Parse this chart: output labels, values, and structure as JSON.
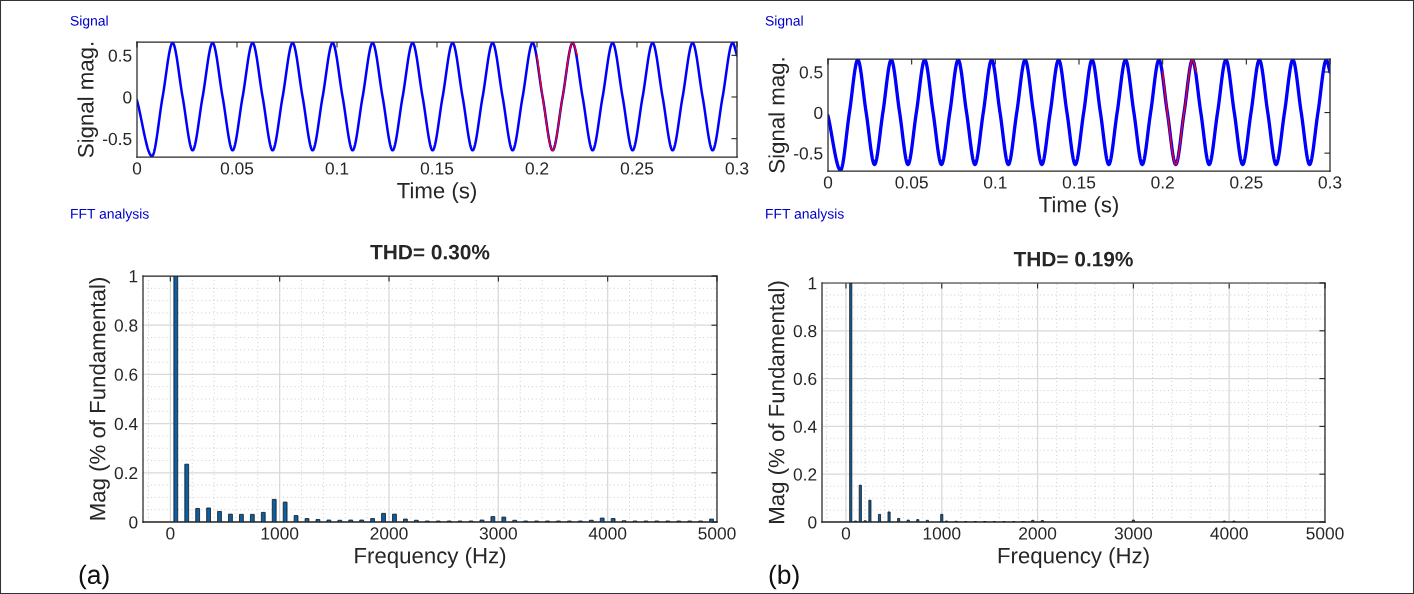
{
  "chart_data": [
    {
      "type": "line",
      "title": "Signal",
      "xlabel": "Time (s)",
      "ylabel": "Signal mag.",
      "xlim": [
        0,
        0.3
      ],
      "ylim": [
        -0.72,
        0.66
      ],
      "xticks": [
        0,
        0.05,
        0.1,
        0.15,
        0.2,
        0.25,
        0.3
      ],
      "yticks": [
        -0.5,
        0,
        0.5
      ],
      "series": [
        {
          "color": "#0000ff",
          "x": [
            0,
            0.0075,
            0.0128,
            0.0178,
            0.0228,
            0.0278,
            0.0328,
            0.0378,
            0.0428,
            0.0478,
            0.0528,
            0.0578,
            0.0628,
            0.0678,
            0.0728,
            0.0778,
            0.0828,
            0.0878,
            0.0928,
            0.0978,
            0.1028,
            0.1078,
            0.1128,
            0.1178,
            0.1228,
            0.1278,
            0.1328,
            0.1378,
            0.1428,
            0.1478,
            0.1528,
            0.1578,
            0.1628,
            0.1678,
            0.1728,
            0.1778,
            0.1828,
            0.1878,
            0.1928,
            0.1978,
            0.2028,
            0.2078,
            0.2128,
            0.2178,
            0.2228,
            0.2278,
            0.2328,
            0.2378,
            0.2428,
            0.2478,
            0.2528,
            0.2578,
            0.2628,
            0.2678,
            0.2728,
            0.2778,
            0.2828,
            0.2878,
            0.2928,
            0.2978,
            0.3
          ],
          "values": [
            -0.04,
            -0.71,
            0,
            0.65,
            0,
            -0.64,
            0,
            0.65,
            0,
            -0.64,
            0,
            0.65,
            0,
            -0.64,
            0,
            0.65,
            0,
            -0.64,
            0,
            0.65,
            0,
            -0.64,
            0,
            0.65,
            0,
            -0.64,
            0,
            0.65,
            0,
            -0.64,
            0,
            0.65,
            0,
            -0.64,
            0,
            0.65,
            0,
            -0.64,
            0,
            0.65,
            0,
            -0.64,
            0,
            0.65,
            0,
            -0.64,
            0,
            0.65,
            0,
            -0.64,
            0,
            0.65,
            0,
            -0.64,
            0,
            0.65,
            0,
            -0.64,
            0,
            0.65,
            0.5
          ]
        },
        {
          "color": "#ff0000",
          "x": [
            0.2,
            0.2028,
            0.2078,
            0.2128,
            0.2178,
            0.2202
          ],
          "values": [
            0.5,
            0,
            -0.64,
            0,
            0.65,
            0.5
          ]
        }
      ]
    },
    {
      "type": "bar",
      "subtitle": "FFT analysis",
      "title": "THD= 0.30%",
      "xlabel": "Frequency (Hz)",
      "ylabel": "Mag (% of Fundamental)",
      "annotations": [
        "(a)"
      ],
      "xlim": [
        -250,
        5000
      ],
      "ylim": [
        0,
        1
      ],
      "xticks": [
        0,
        1000,
        2000,
        3000,
        4000,
        5000
      ],
      "yticks": [
        0,
        0.2,
        0.4,
        0.6,
        0.8,
        1
      ],
      "grid": true,
      "color": "#0b5fa5",
      "x": [
        50,
        150,
        250,
        350,
        450,
        550,
        650,
        750,
        850,
        950,
        1050,
        1150,
        1250,
        1350,
        1450,
        1550,
        1650,
        1750,
        1850,
        1950,
        2050,
        2150,
        2250,
        2350,
        2450,
        2550,
        2650,
        2750,
        2850,
        2950,
        3050,
        3150,
        3250,
        3350,
        3450,
        3550,
        3650,
        3750,
        3850,
        3950,
        4050,
        4150,
        4250,
        4350,
        4450,
        4550,
        4650,
        4750,
        4850,
        4950
      ],
      "values": [
        1,
        0.235,
        0.055,
        0.057,
        0.043,
        0.032,
        0.031,
        0.031,
        0.039,
        0.092,
        0.081,
        0.026,
        0.014,
        0.01,
        0.008,
        0.007,
        0.008,
        0.008,
        0.014,
        0.035,
        0.032,
        0.012,
        0.007,
        0.004,
        0.004,
        0.004,
        0.004,
        0.004,
        0.008,
        0.022,
        0.02,
        0.007,
        0.004,
        0.004,
        0.004,
        0.004,
        0.004,
        0.004,
        0.007,
        0.016,
        0.014,
        0.005,
        0.004,
        0.004,
        0.004,
        0.004,
        0.004,
        0.004,
        0.004,
        0.012
      ]
    },
    {
      "type": "line",
      "title": "Signal",
      "xlabel": "Time (s)",
      "ylabel": "Signal mag.",
      "xlim": [
        0,
        0.3
      ],
      "ylim": [
        -0.72,
        0.66
      ],
      "xticks": [
        0,
        0.05,
        0.1,
        0.15,
        0.2,
        0.25,
        0.3
      ],
      "yticks": [
        -0.5,
        0,
        0.5
      ],
      "series": [
        {
          "color": "#0000ff",
          "x": [
            0,
            0.0075,
            0.0128,
            0.0178,
            0.0228,
            0.0278,
            0.0328,
            0.0378,
            0.0428,
            0.0478,
            0.0528,
            0.0578,
            0.0628,
            0.0678,
            0.0728,
            0.0778,
            0.0828,
            0.0878,
            0.0928,
            0.0978,
            0.1028,
            0.1078,
            0.1128,
            0.1178,
            0.1228,
            0.1278,
            0.1328,
            0.1378,
            0.1428,
            0.1478,
            0.1528,
            0.1578,
            0.1628,
            0.1678,
            0.1728,
            0.1778,
            0.1828,
            0.1878,
            0.1928,
            0.1978,
            0.2028,
            0.2078,
            0.2128,
            0.2178,
            0.2228,
            0.2278,
            0.2328,
            0.2378,
            0.2428,
            0.2478,
            0.2528,
            0.2578,
            0.2628,
            0.2678,
            0.2728,
            0.2778,
            0.2828,
            0.2878,
            0.2928,
            0.2978,
            0.3
          ],
          "values": [
            -0.04,
            -0.71,
            0,
            0.65,
            0,
            -0.64,
            0,
            0.65,
            0,
            -0.64,
            0,
            0.65,
            0,
            -0.64,
            0,
            0.65,
            0,
            -0.64,
            0,
            0.65,
            0,
            -0.64,
            0,
            0.65,
            0,
            -0.64,
            0,
            0.65,
            0,
            -0.64,
            0,
            0.65,
            0,
            -0.64,
            0,
            0.65,
            0,
            -0.64,
            0,
            0.65,
            0,
            -0.64,
            0,
            0.65,
            0,
            -0.64,
            0,
            0.65,
            0,
            -0.64,
            0,
            0.65,
            0,
            -0.64,
            0,
            0.65,
            0,
            -0.64,
            0,
            0.65,
            0.5
          ]
        },
        {
          "color": "#ff0000",
          "x": [
            0.2,
            0.2028,
            0.2078,
            0.2128,
            0.2178,
            0.2202
          ],
          "values": [
            0.5,
            0,
            -0.64,
            0,
            0.65,
            0.5
          ]
        }
      ]
    },
    {
      "type": "bar",
      "subtitle": "FFT analysis",
      "title": "THD= 0.19%",
      "xlabel": "Frequency (Hz)",
      "ylabel": "Mag (% of Fundamental)",
      "annotations": [
        "(b)"
      ],
      "xlim": [
        -250,
        5000
      ],
      "ylim": [
        0,
        1
      ],
      "xticks": [
        0,
        1000,
        2000,
        3000,
        4000,
        5000
      ],
      "yticks": [
        0,
        0.2,
        0.4,
        0.6,
        0.8,
        1
      ],
      "grid": true,
      "color": "#0b5fa5",
      "x": [
        50,
        100,
        150,
        200,
        250,
        350,
        450,
        550,
        650,
        750,
        850,
        1000,
        1050,
        1150,
        1250,
        1350,
        1450,
        1550,
        1650,
        1750,
        1850,
        1950,
        2050,
        3000,
        3950,
        4050
      ],
      "values": [
        1,
        0.004,
        0.154,
        0.005,
        0.091,
        0.032,
        0.042,
        0.015,
        0.008,
        0.01,
        0.007,
        0.032,
        0.004,
        0.003,
        0.002,
        0.002,
        0.002,
        0.002,
        0.002,
        0.002,
        0.002,
        0.007,
        0.006,
        0.008,
        0.004,
        0.004
      ]
    }
  ]
}
